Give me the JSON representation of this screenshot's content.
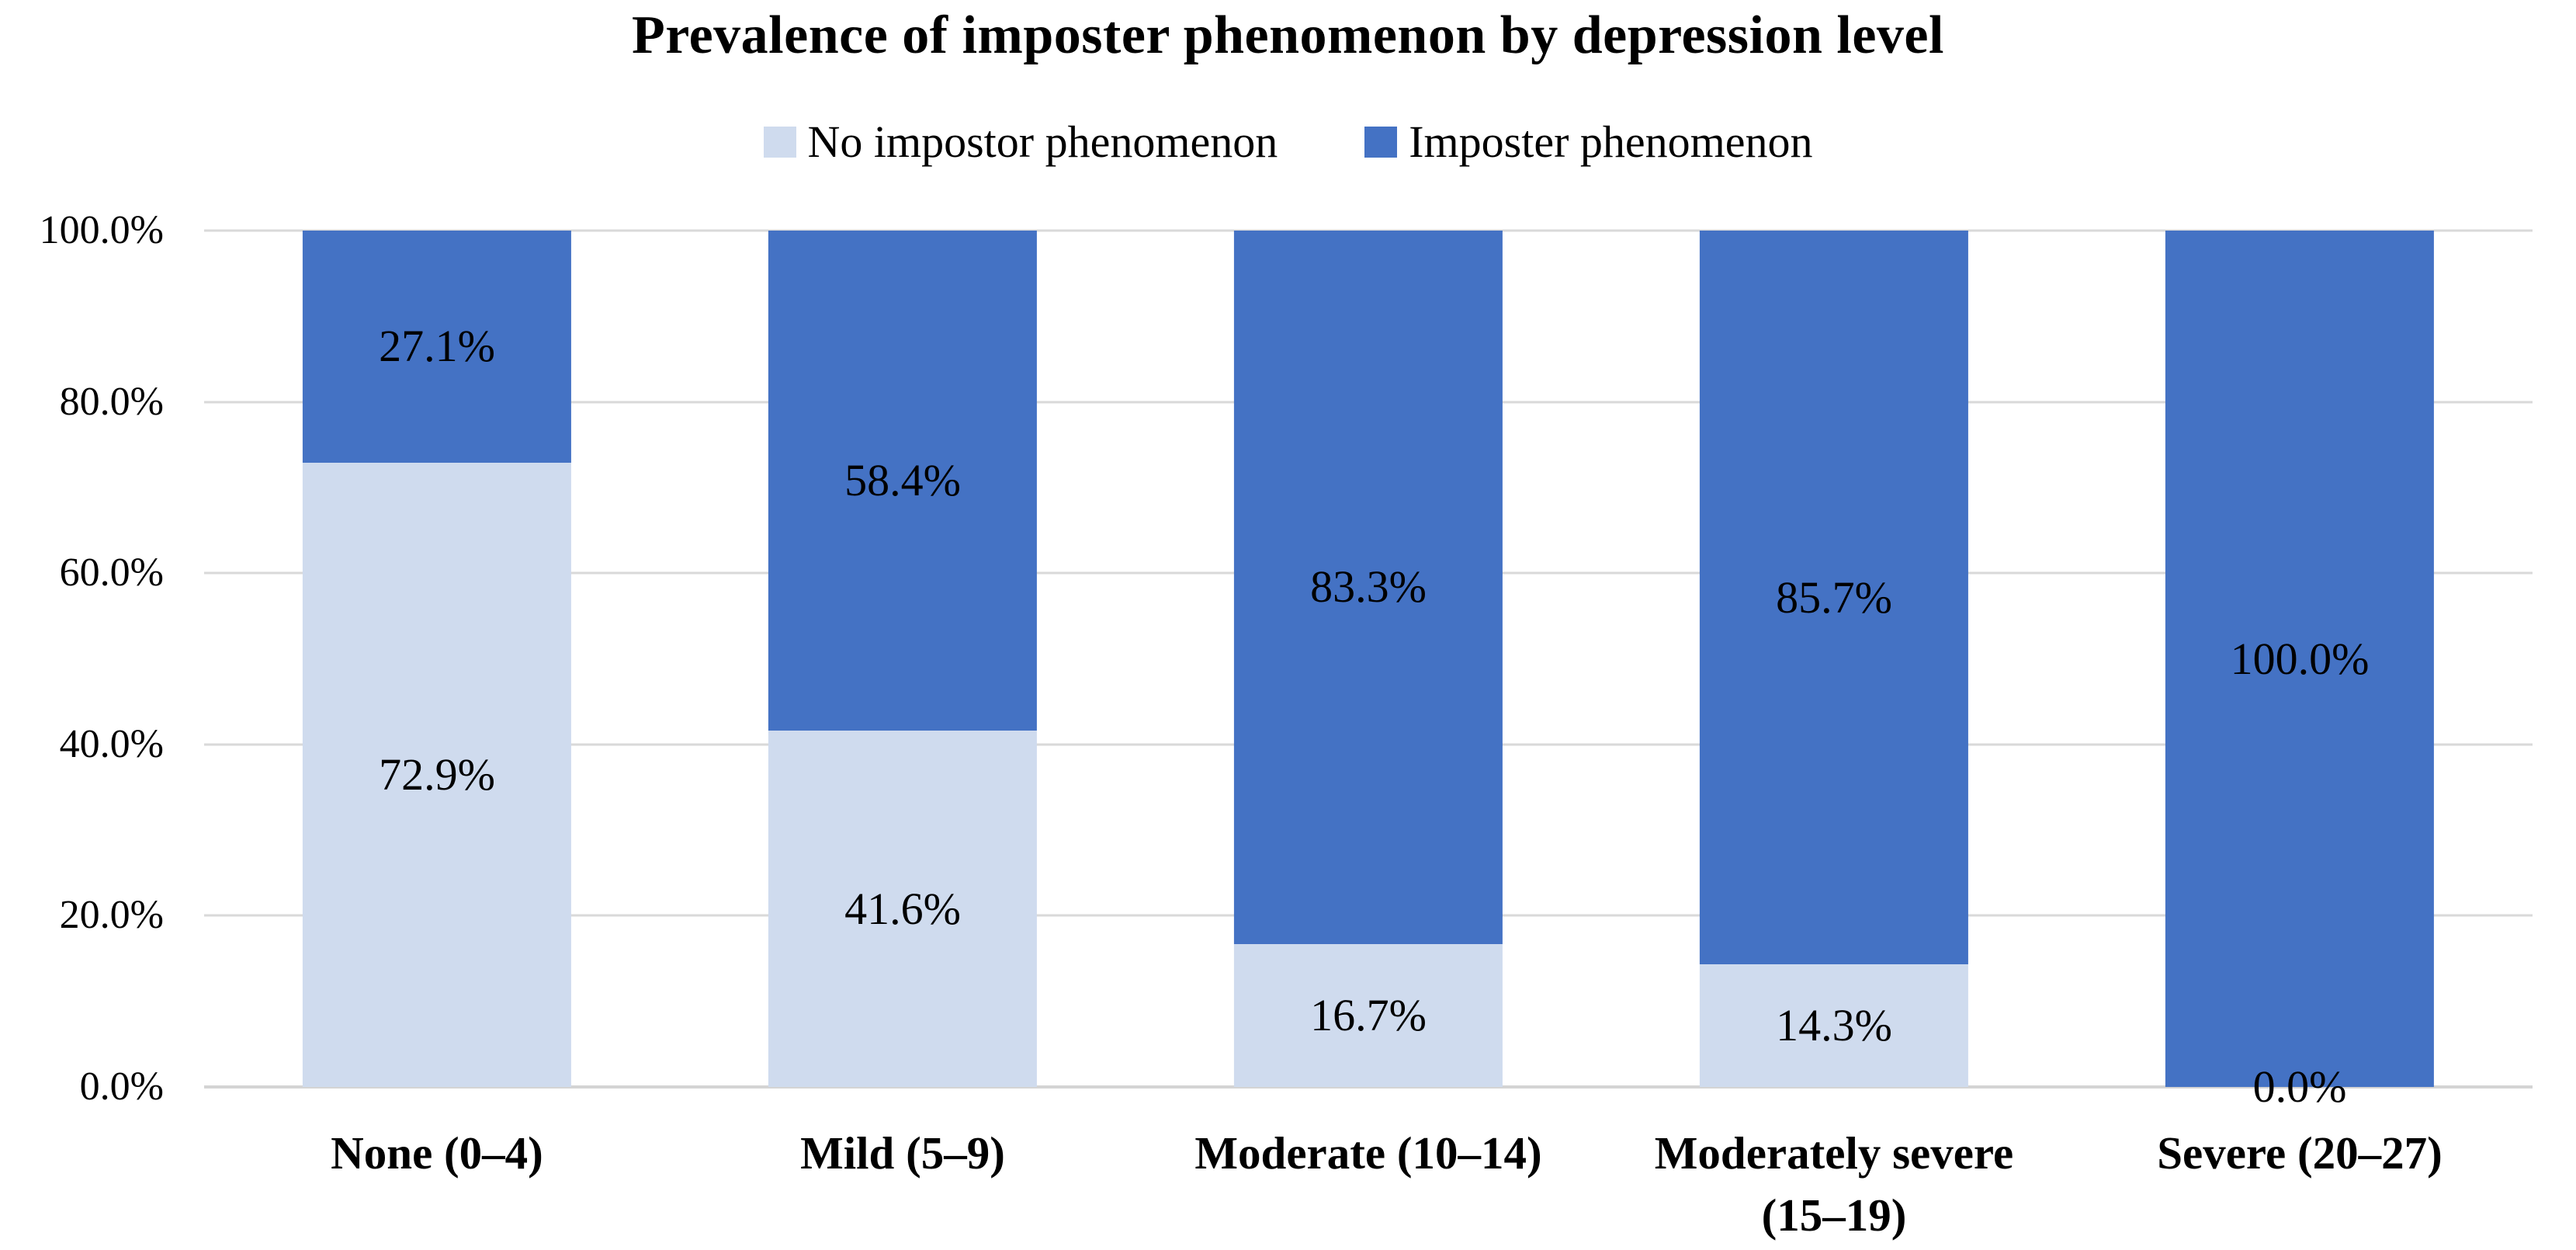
{
  "title": "Prevalence of imposter phenomenon by depression level",
  "chart_data": {
    "type": "bar",
    "stacking": "percent-stacked-column",
    "title": "Prevalence of imposter phenomenon by depression level",
    "categories": [
      "None (0–4)",
      "Mild (5–9)",
      "Moderate (10–14)",
      "Moderately severe (15–19)",
      "Severe (20–27)"
    ],
    "series": [
      {
        "name": "No impostor phenomenon",
        "color": "#cfdbee",
        "values": [
          72.9,
          41.6,
          16.7,
          14.3,
          0.0
        ]
      },
      {
        "name": "Imposter phenomenon",
        "color": "#4472c4",
        "values": [
          27.1,
          58.4,
          83.3,
          85.7,
          100.0
        ]
      }
    ],
    "xlabel": "",
    "ylabel": "",
    "ylim": [
      0,
      100
    ],
    "y_ticks": [
      {
        "value": 0,
        "label": "0.0%"
      },
      {
        "value": 20,
        "label": "20.0%"
      },
      {
        "value": 40,
        "label": "40.0%"
      },
      {
        "value": 60,
        "label": "60.0%"
      },
      {
        "value": 80,
        "label": "80.0%"
      },
      {
        "value": 100,
        "label": "100.0%"
      }
    ],
    "grid": true,
    "legend_position": "top",
    "data_label_format": "one-decimal-percent-centered"
  },
  "colors": {
    "background": "#ffffff",
    "gridline": "#d9d9d9",
    "axis_line": "#d4d4d4",
    "text": "#000000",
    "light_series": "#cfdbee",
    "dark_series": "#4472c4"
  }
}
